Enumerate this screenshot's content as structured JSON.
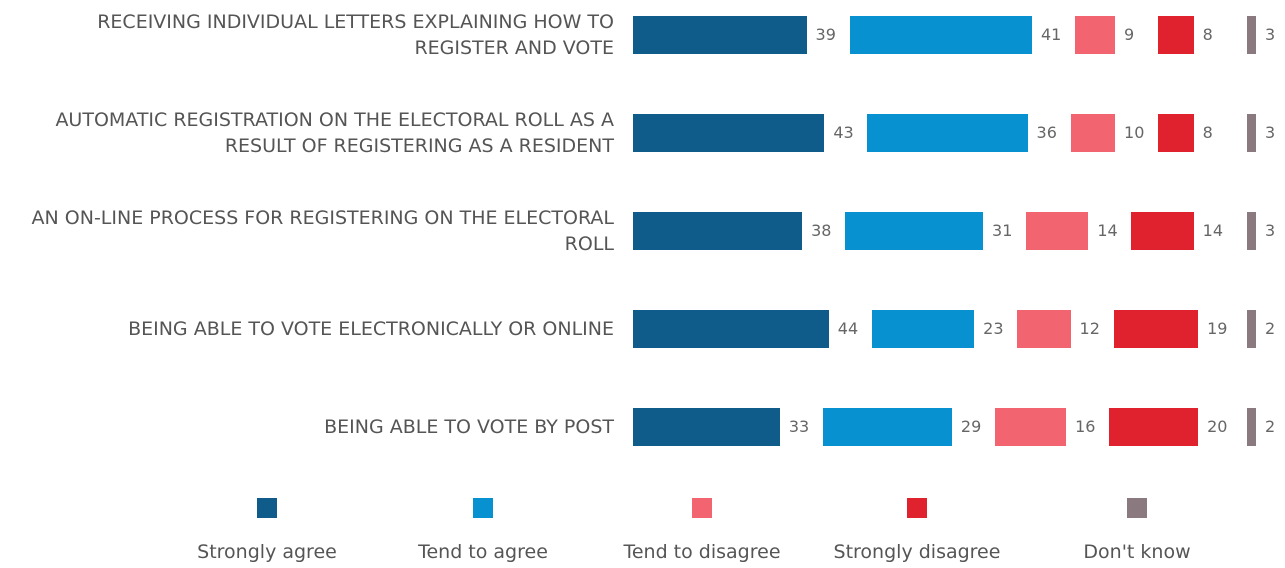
{
  "chart_data": {
    "type": "bar",
    "orientation": "horizontal",
    "layout": "stacked-separated",
    "categories": [
      "RECEIVING INDIVIDUAL LETTERS EXPLAINING HOW TO REGISTER AND VOTE",
      "AUTOMATIC REGISTRATION ON THE ELECTORAL ROLL AS A RESULT OF REGISTERING AS A RESIDENT",
      "AN ON-LINE PROCESS FOR REGISTERING ON THE ELECTORAL ROLL",
      "BEING ABLE TO VOTE ELECTRONICALLY OR ONLINE",
      "BEING ABLE TO VOTE BY POST"
    ],
    "series": [
      {
        "name": "Strongly agree",
        "color": "#0f5b8a",
        "values": [
          39,
          43,
          38,
          44,
          33
        ]
      },
      {
        "name": "Tend to agree",
        "color": "#0891d1",
        "values": [
          41,
          36,
          31,
          23,
          29
        ]
      },
      {
        "name": "Tend to disagree",
        "color": "#f2646f",
        "values": [
          9,
          10,
          14,
          12,
          16
        ]
      },
      {
        "name": "Strongly disagree",
        "color": "#e0222f",
        "values": [
          8,
          8,
          14,
          19,
          20
        ]
      },
      {
        "name": "Don't know",
        "color": "#8a7a7f",
        "values": [
          3,
          3,
          3,
          2,
          2
        ]
      }
    ],
    "legend_position": "bottom",
    "grid": false
  }
}
